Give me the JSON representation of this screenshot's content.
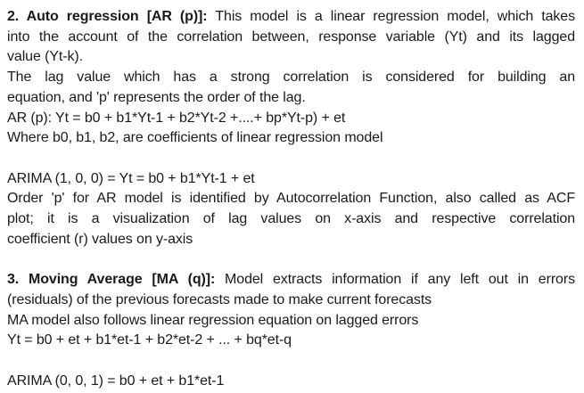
{
  "page": {
    "background_color": "#ffffff",
    "text_color": "#1a1a1a"
  },
  "document": {
    "lines": [
      {
        "bold": "2. Auto regression [AR (p)]:",
        "rest": " This model is a linear regression model, which takes"
      },
      {
        "text": "into the account of the correlation between, response variable (Yt) and its lagged"
      },
      {
        "text": "value (Yt-k)."
      },
      {
        "text": "The lag value which has a strong correlation is considered for building an"
      },
      {
        "text": "equation, and 'p' represents the order of the lag."
      },
      {
        "text": "AR (p): Yt = b0 + b1*Yt-1 + b2*Yt-2 +....+ bp*Yt-p) + et"
      },
      {
        "text": "Where b0, b1, b2, are coefficients of linear regression model"
      },
      {
        "text": ""
      },
      {
        "text": "ARIMA (1, 0, 0) = Yt = b0 + b1*Yt-1 + et"
      },
      {
        "text": "Order 'p' for AR model is identified by Autocorrelation Function, also called as ACF"
      },
      {
        "text": "plot; it is a visualization of lag values on x-axis and respective correlation"
      },
      {
        "text": "coefficient (r) values on y-axis"
      },
      {
        "text": ""
      },
      {
        "bold": "3. Moving Average [MA (q)]:",
        "rest": " Model extracts information if any left out in errors"
      },
      {
        "text": "(residuals) of the previous forecasts made to make current forecasts"
      },
      {
        "text": "MA model also follows linear regression equation on lagged errors"
      },
      {
        "text": "Yt = b0 + et + b1*et-1 + b2*et-2 + ... + bq*et-q"
      },
      {
        "text": ""
      },
      {
        "text": "ARIMA (0, 0, 1) = b0 + et + b1*et-1"
      }
    ]
  }
}
